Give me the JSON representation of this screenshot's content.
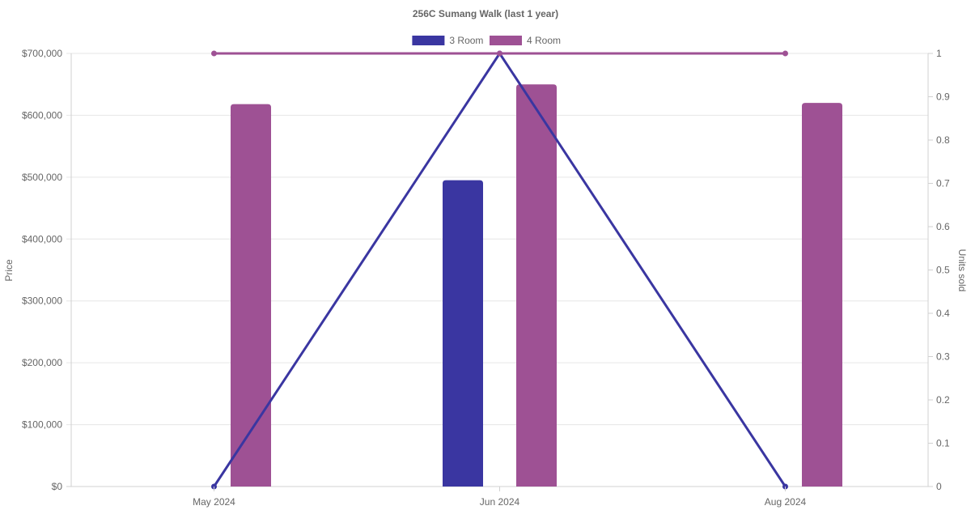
{
  "chart_data": {
    "type": "bar",
    "title": "256C Sumang Walk (last 1 year)",
    "categories": [
      "May 2024",
      "Jun 2024",
      "Aug 2024"
    ],
    "legend": {
      "position": "top"
    },
    "grid": true,
    "y_left": {
      "label": "Price",
      "min": 0,
      "max": 700000,
      "ticks": [
        "$0",
        "$100,000",
        "$200,000",
        "$300,000",
        "$400,000",
        "$500,000",
        "$600,000",
        "$700,000"
      ],
      "tick_values": [
        0,
        100000,
        200000,
        300000,
        400000,
        500000,
        600000,
        700000
      ]
    },
    "y_right": {
      "label": "Units sold",
      "min": 0,
      "max": 1,
      "ticks": [
        "0",
        "0.1",
        "0.2",
        "0.3",
        "0.4",
        "0.5",
        "0.6",
        "0.7",
        "0.8",
        "0.9",
        "1"
      ],
      "tick_values": [
        0,
        0.1,
        0.2,
        0.3,
        0.4,
        0.5,
        0.6,
        0.7,
        0.8,
        0.9,
        1
      ]
    },
    "series": [
      {
        "name": "3 Room",
        "color": "#3a36a1",
        "price": [
          null,
          495000,
          null
        ],
        "units": [
          0,
          1,
          0
        ]
      },
      {
        "name": "4 Room",
        "color": "#9e5194",
        "price": [
          618000,
          650000,
          620000
        ],
        "units": [
          1,
          1,
          1
        ]
      }
    ]
  }
}
